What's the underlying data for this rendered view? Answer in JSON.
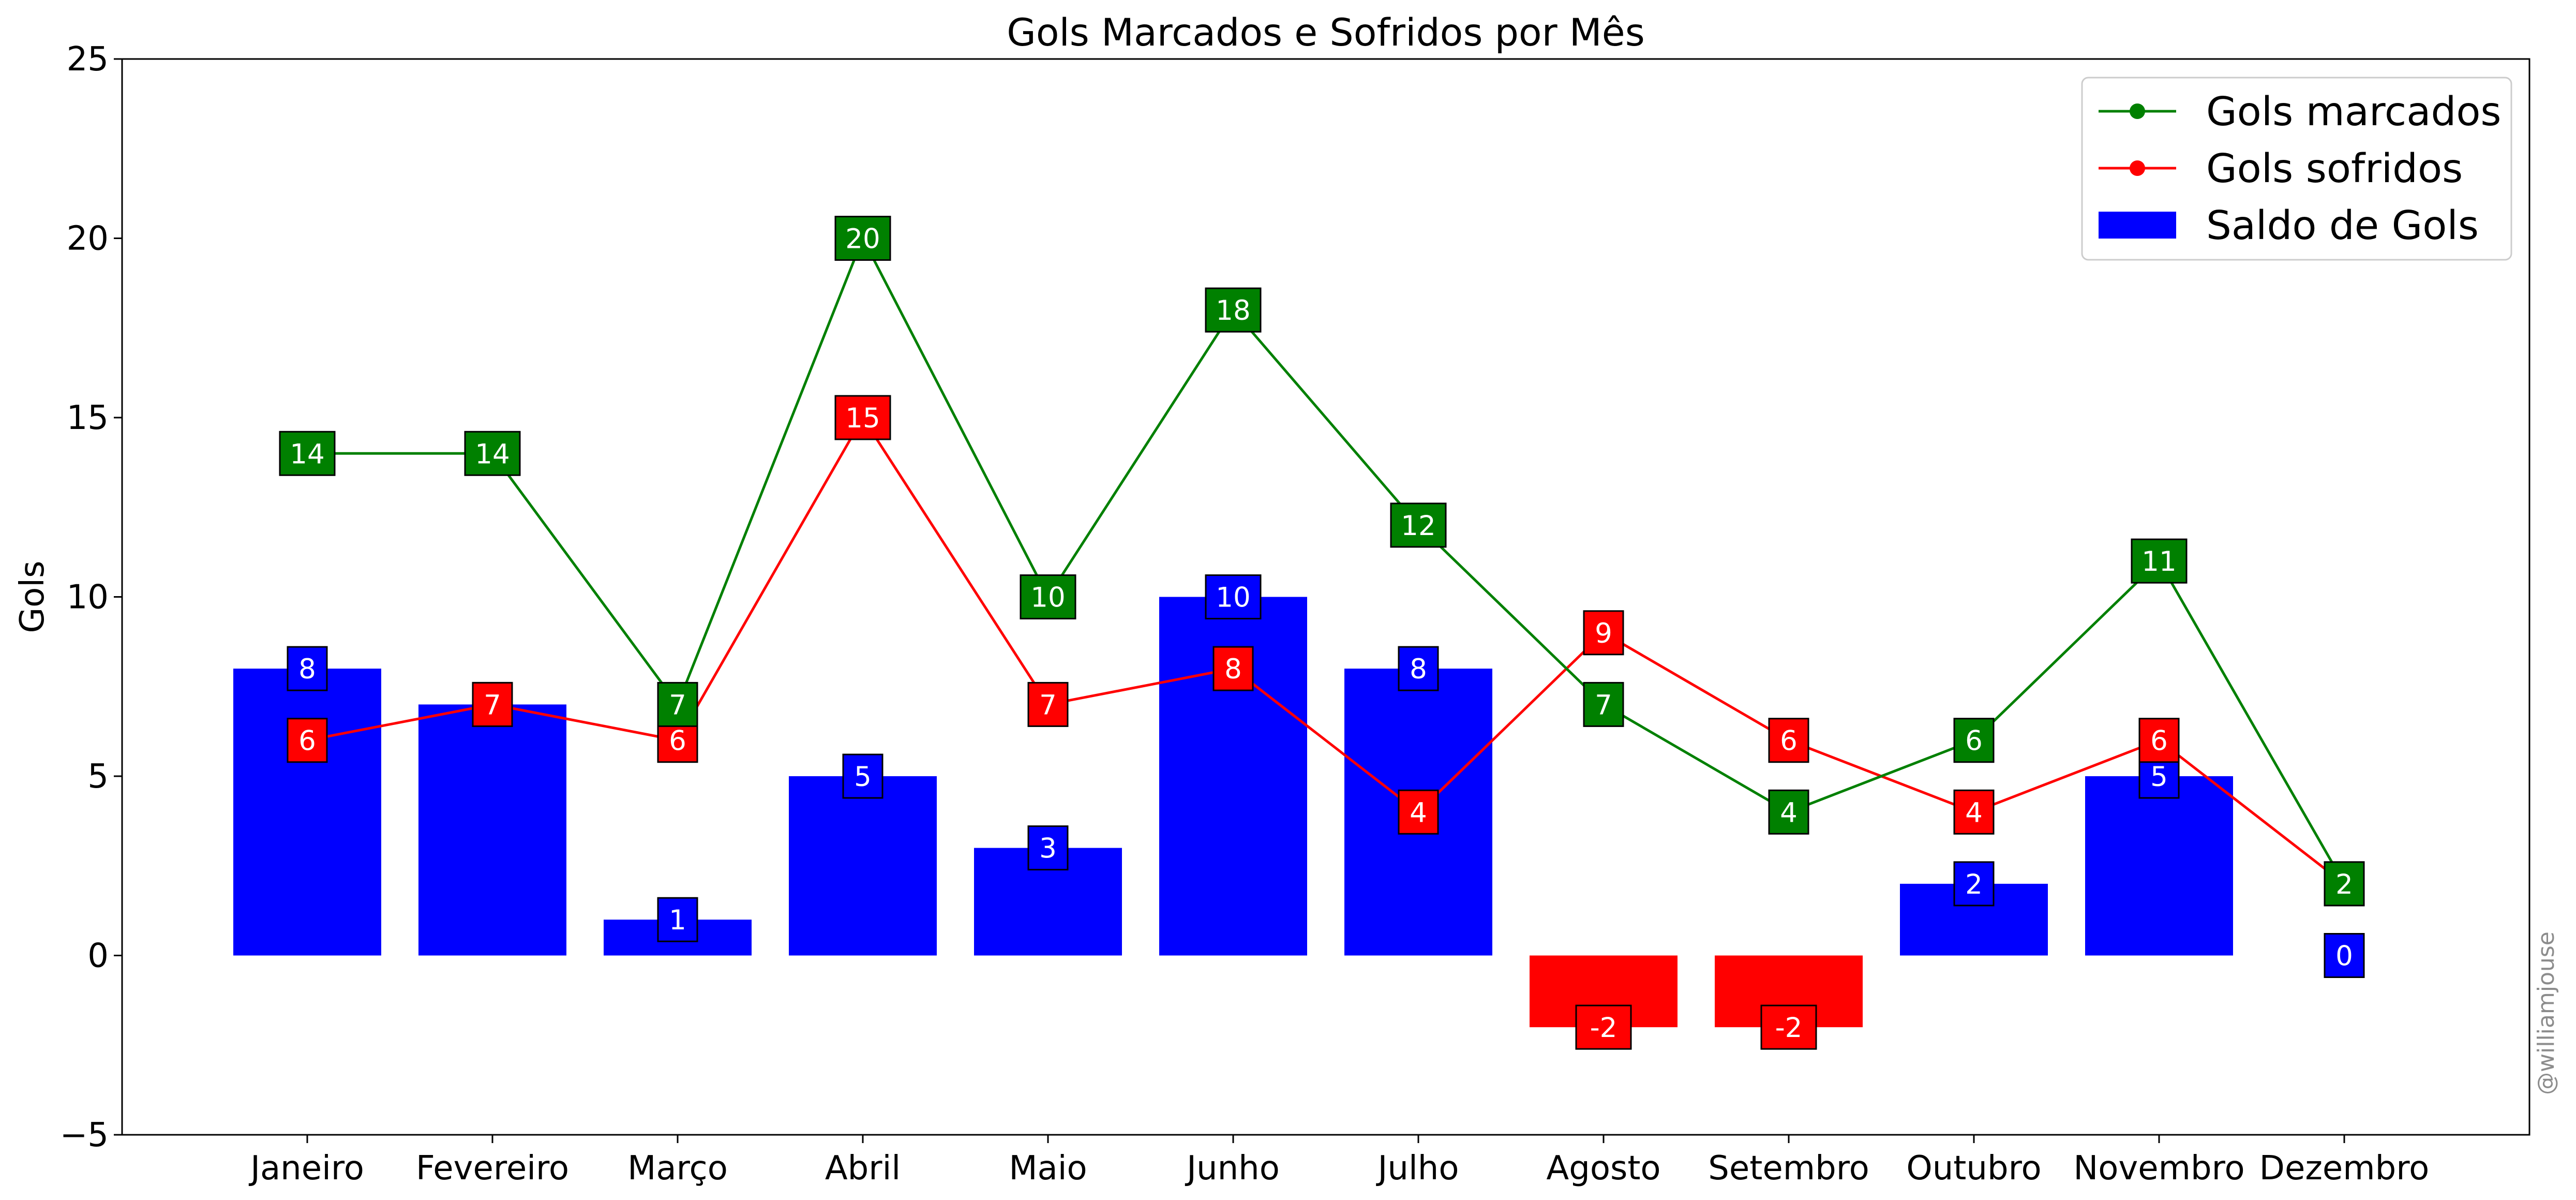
{
  "chart_data": {
    "type": "bar",
    "title": "Gols Marcados e Sofridos por Mês",
    "xlabel": "",
    "ylabel": "Gols",
    "ylim": [
      -5,
      25
    ],
    "yticks": [
      -5,
      0,
      5,
      10,
      15,
      20,
      25
    ],
    "ytick_labels": [
      "−5",
      "0",
      "5",
      "10",
      "15",
      "20",
      "25"
    ],
    "grid": false,
    "legend_position": "top-right",
    "categories": [
      "Janeiro",
      "Fevereiro",
      "Março",
      "Abril",
      "Maio",
      "Junho",
      "Julho",
      "Agosto",
      "Setembro",
      "Outubro",
      "Novembro",
      "Dezembro"
    ],
    "series": [
      {
        "name": "Gols marcados",
        "kind": "line",
        "color": "#008000",
        "values": [
          14,
          14,
          7,
          20,
          10,
          18,
          12,
          7,
          4,
          6,
          11,
          2
        ]
      },
      {
        "name": "Gols sofridos",
        "kind": "line",
        "color": "#ff0000",
        "values": [
          6,
          7,
          6,
          15,
          7,
          8,
          4,
          9,
          6,
          4,
          6,
          2
        ]
      },
      {
        "name": "Saldo de Gols",
        "kind": "bar",
        "color": "#0000ff",
        "negative_color": "#ff0000",
        "values": [
          8,
          7,
          1,
          5,
          3,
          10,
          8,
          -2,
          -2,
          2,
          5,
          0
        ]
      }
    ],
    "watermark": "@williamjouse"
  }
}
